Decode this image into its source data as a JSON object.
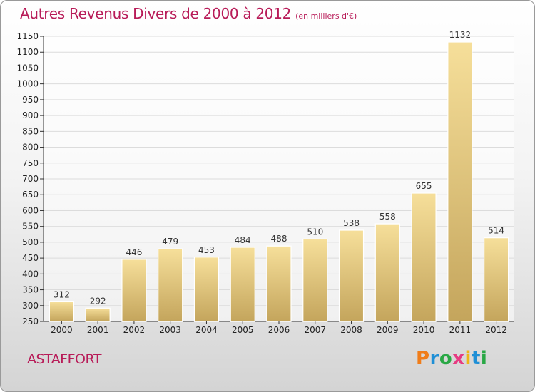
{
  "header": {
    "title": "Autres Revenus Divers de 2000 à 2012",
    "unit": "(en milliers d'€)"
  },
  "footer": {
    "town": "ASTAFFORT",
    "logo": {
      "p": "P",
      "r": "r",
      "o": "o",
      "x": "x",
      "i1": "i",
      "t": "t",
      "i2": "i"
    }
  },
  "colors": {
    "title": "#b81b58",
    "bar_light": "#f6df9a",
    "bar_dark": "#c4a55c",
    "grid": "#dcdcdc"
  },
  "chart_data": {
    "type": "bar",
    "title": "Autres Revenus Divers de 2000 à 2012",
    "subtitle": "(en milliers d'€)",
    "categories": [
      "2000",
      "2001",
      "2002",
      "2003",
      "2004",
      "2005",
      "2006",
      "2007",
      "2008",
      "2009",
      "2010",
      "2011",
      "2012"
    ],
    "values": [
      312,
      292,
      446,
      479,
      453,
      484,
      488,
      510,
      538,
      558,
      655,
      1132,
      514
    ],
    "data_labels": [
      "312",
      "292",
      "446",
      "479",
      "453",
      "484",
      "488",
      "510",
      "538",
      "558",
      "655",
      "1132",
      "514"
    ],
    "ylim": [
      250,
      1150
    ],
    "yticks": [
      250,
      300,
      350,
      400,
      450,
      500,
      550,
      600,
      650,
      700,
      750,
      800,
      850,
      900,
      950,
      1000,
      1050,
      1100,
      1150
    ],
    "grid": true,
    "xlabel": "",
    "ylabel": ""
  }
}
